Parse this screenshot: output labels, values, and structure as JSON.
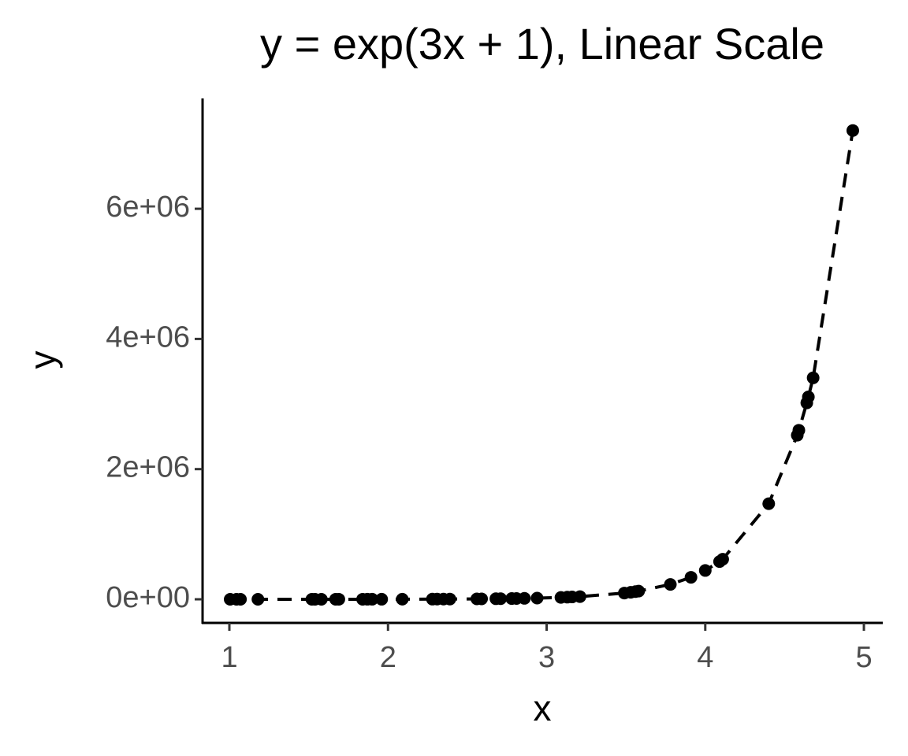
{
  "chart_data": {
    "type": "scatter",
    "title": "y = exp(3x + 1), Linear Scale",
    "xlabel": "x",
    "ylabel": "y",
    "color": "#000000",
    "line_style": "dashed",
    "grid": false,
    "x": [
      1.005,
      1.045,
      1.07,
      1.18,
      1.52,
      1.54,
      1.58,
      1.67,
      1.69,
      1.84,
      1.87,
      1.9,
      1.96,
      2.09,
      2.28,
      2.31,
      2.35,
      2.39,
      2.56,
      2.59,
      2.68,
      2.71,
      2.78,
      2.81,
      2.86,
      2.94,
      3.09,
      3.13,
      3.16,
      3.21,
      3.49,
      3.53,
      3.56,
      3.58,
      3.78,
      3.91,
      4.0,
      4.09,
      4.11,
      4.4,
      4.58,
      4.59,
      4.64,
      4.65,
      4.68,
      4.93
    ],
    "values": [
      55.4,
      62.5,
      67.4,
      93.7,
      259.8,
      275.9,
      311,
      407.6,
      432.9,
      678.6,
      742.4,
      812.4,
      972.6,
      1436,
      2540,
      2779,
      3134,
      3533,
      5884,
      6438,
      8433,
      9227,
      11384,
      12456,
      14472,
      18398,
      28854,
      32532,
      35596,
      41357,
      95798,
      108012,
      118184,
      125490,
      228672,
      337710,
      442413,
      579550,
      615385,
      1468864,
      2520536,
      2597300,
      3017580,
      3109470,
      3402170,
      7202490
    ],
    "xlim": [
      0.831,
      5.119
    ],
    "ylim": [
      -363000,
      7695000
    ],
    "xticks": [
      1,
      2,
      3,
      4,
      5
    ],
    "yticks": [
      {
        "value": 0,
        "label": "0e+00"
      },
      {
        "value": 2000000,
        "label": "2e+06"
      },
      {
        "value": 4000000,
        "label": "4e+06"
      },
      {
        "value": 6000000,
        "label": "6e+06"
      }
    ]
  }
}
